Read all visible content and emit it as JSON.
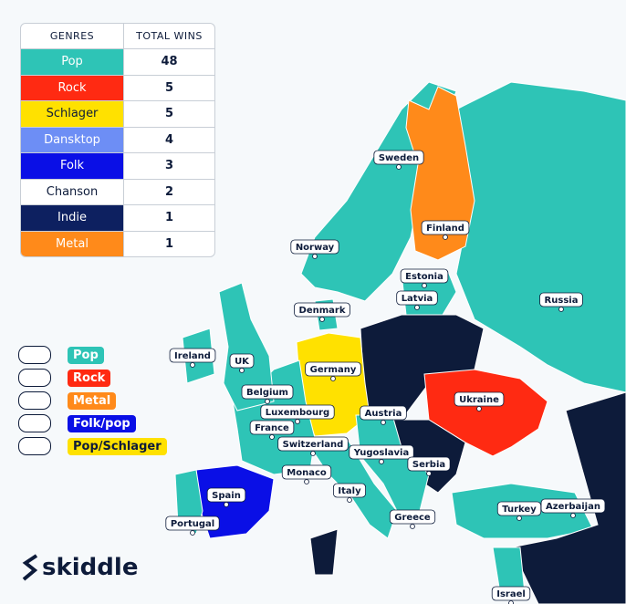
{
  "table": {
    "headers": [
      "GENRES",
      "TOTAL WINS"
    ],
    "rows": [
      {
        "genre": "Pop",
        "wins": 48,
        "color": "#2ec4b6"
      },
      {
        "genre": "Rock",
        "wins": 5,
        "color": "#ff2a12"
      },
      {
        "genre": "Schlager",
        "wins": 5,
        "color": "#ffe100"
      },
      {
        "genre": "Dansktop",
        "wins": 4,
        "color": "#6d8ef5"
      },
      {
        "genre": "Folk",
        "wins": 3,
        "color": "#0a0fe6"
      },
      {
        "genre": "Chanson",
        "wins": 2,
        "color": "#ffffff"
      },
      {
        "genre": "Indie",
        "wins": 1,
        "color": "#0d2060"
      },
      {
        "genre": "Metal",
        "wins": 1,
        "color": "#ff8a1a"
      }
    ]
  },
  "legend": [
    {
      "label": "Pop",
      "color": "#2ec4b6"
    },
    {
      "label": "Rock",
      "color": "#ff2a12"
    },
    {
      "label": "Metal",
      "color": "#ff8a1a"
    },
    {
      "label": "Folk/pop",
      "color": "#0a0fe6"
    },
    {
      "label": "Pop/Schlager",
      "color": "#ffe100"
    }
  ],
  "countries": [
    "Sweden",
    "Finland",
    "Norway",
    "Estonia",
    "Latvia",
    "Russia",
    "Denmark",
    "Ireland",
    "UK",
    "Germany",
    "Belgium",
    "Luxembourg",
    "France",
    "Austria",
    "Ukraine",
    "Switzerland",
    "Yugoslavia",
    "Serbia",
    "Monaco",
    "Italy",
    "Spain",
    "Portugal",
    "Turkey",
    "Azerbaijan",
    "Greece",
    "Israel"
  ],
  "brand": "skiddle"
}
